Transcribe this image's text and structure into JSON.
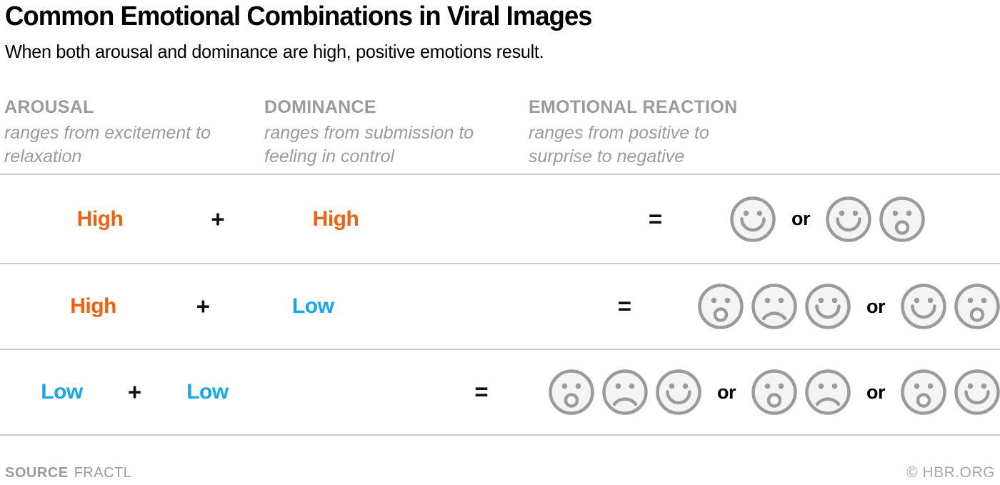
{
  "header": {
    "title": "Common Emotional Combinations in Viral Images",
    "subtitle": "When both arousal and dominance are high, positive emotions result."
  },
  "columns": [
    {
      "label": "AROUSAL",
      "description": "ranges from excitement to relaxation"
    },
    {
      "label": "DOMINANCE",
      "description": "ranges from submission to feeling in control"
    },
    {
      "label": "EMOTIONAL REACTION",
      "description": "ranges from positive to surprise to negative"
    }
  ],
  "rows": [
    {
      "arousal": {
        "label": "High",
        "level": "high"
      },
      "plus": "+",
      "dominance": {
        "label": "High",
        "level": "high"
      },
      "equals": "=",
      "or_label": "or",
      "face_groups": [
        [
          "smile"
        ],
        [
          "smile",
          "surprise"
        ]
      ]
    },
    {
      "arousal": {
        "label": "High",
        "level": "high"
      },
      "plus": "+",
      "dominance": {
        "label": "Low",
        "level": "low"
      },
      "equals": "=",
      "or_label": "or",
      "face_groups": [
        [
          "surprise",
          "sad",
          "smile"
        ],
        [
          "smile",
          "surprise"
        ]
      ]
    },
    {
      "arousal": {
        "label": "Low",
        "level": "low"
      },
      "plus": "+",
      "dominance": {
        "label": "Low",
        "level": "low"
      },
      "equals": "=",
      "or_label": "or",
      "face_groups": [
        [
          "surprise",
          "sad",
          "smile"
        ],
        [
          "surprise",
          "sad"
        ],
        [
          "surprise",
          "smile"
        ]
      ]
    }
  ],
  "footer": {
    "source_label": "SOURCE",
    "source_value": "FRACTL",
    "credit": "© HBR.ORG"
  },
  "colors": {
    "high": "#f4600c",
    "low": "#16a5f2",
    "face_stroke": "#9b9b9b",
    "face_fill": "#f4f4f4",
    "divider": "#c9c9c9",
    "muted_text": "#9b9b9b"
  },
  "icons": {
    "smile": "smiley-face-icon",
    "sad": "frowning-face-icon",
    "surprise": "surprised-face-icon"
  },
  "chart_data": {
    "type": "table",
    "title": "Common Emotional Combinations in Viral Images",
    "subtitle": "When both arousal and dominance are high, positive emotions result.",
    "columns": [
      "AROUSAL",
      "DOMINANCE",
      "EMOTIONAL REACTION"
    ],
    "column_descriptions": [
      "ranges from excitement to relaxation",
      "ranges from submission to feeling in control",
      "ranges from positive to surprise to negative"
    ],
    "rows": [
      {
        "arousal": "High",
        "dominance": "High",
        "reaction_options": [
          [
            "positive"
          ],
          [
            "positive",
            "surprise"
          ]
        ]
      },
      {
        "arousal": "High",
        "dominance": "Low",
        "reaction_options": [
          [
            "surprise",
            "negative",
            "positive"
          ],
          [
            "positive",
            "surprise"
          ]
        ]
      },
      {
        "arousal": "Low",
        "dominance": "Low",
        "reaction_options": [
          [
            "surprise",
            "negative",
            "positive"
          ],
          [
            "surprise",
            "negative"
          ],
          [
            "surprise",
            "positive"
          ]
        ]
      }
    ],
    "source": "FRACTL",
    "credit": "© HBR.ORG"
  }
}
